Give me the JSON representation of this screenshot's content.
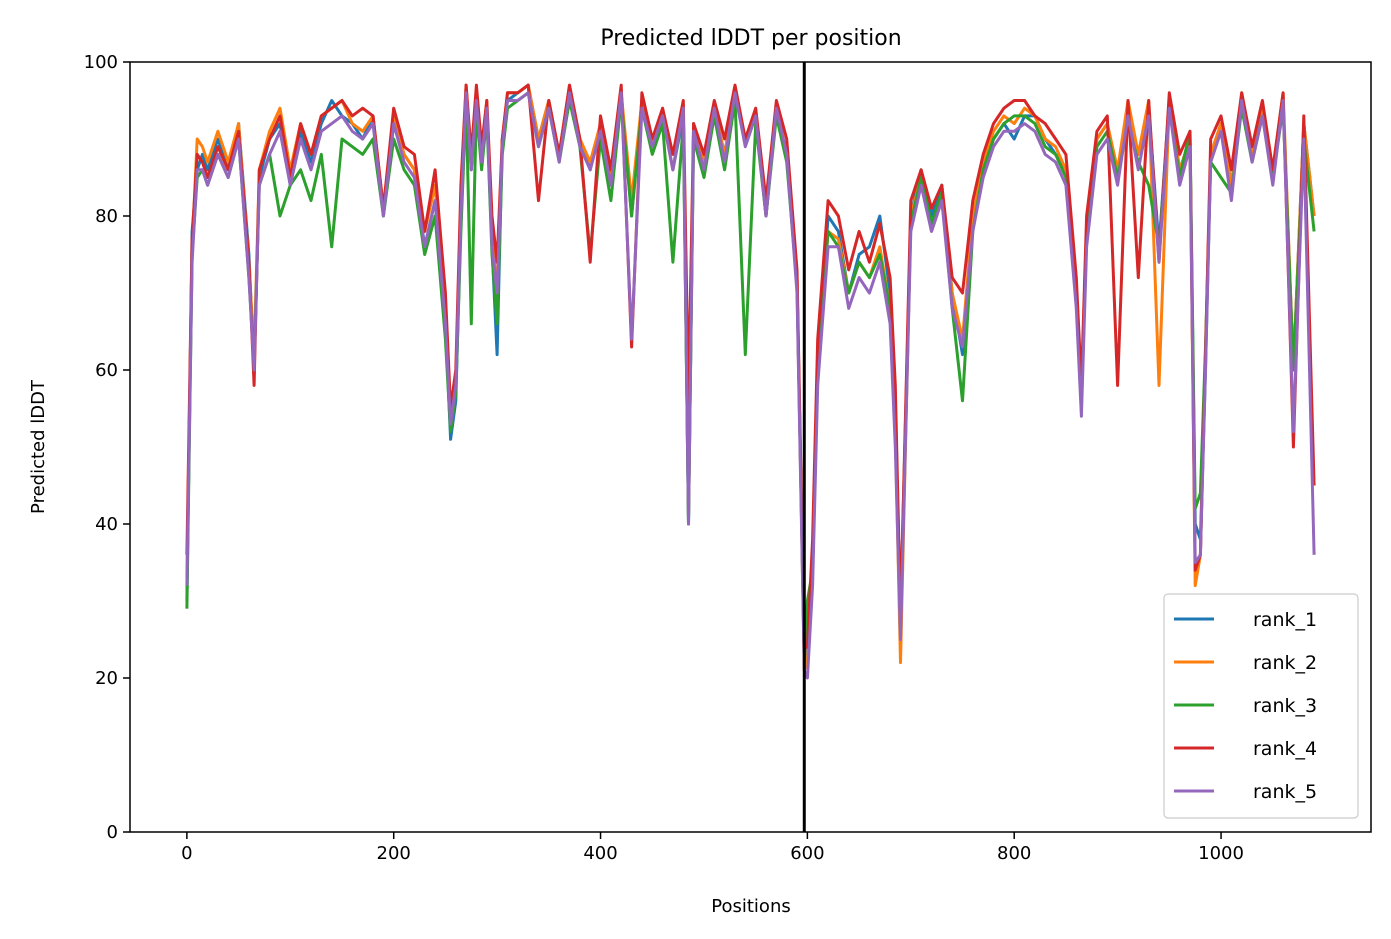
{
  "chart_data": {
    "type": "line",
    "title": "Predicted lDDT per position",
    "xlabel": "Positions",
    "ylabel": "Predicted lDDT",
    "xlim": [
      -55,
      1145
    ],
    "ylim": [
      0,
      100
    ],
    "xticks": [
      0,
      200,
      400,
      600,
      800,
      1000
    ],
    "yticks": [
      0,
      20,
      40,
      60,
      80,
      100
    ],
    "grid": false,
    "legend_position": "lower-right",
    "vline": 597,
    "series": [
      {
        "name": "rank_1",
        "color": "#1f77b4",
        "x": [
          0,
          5,
          10,
          15,
          20,
          30,
          40,
          50,
          60,
          65,
          70,
          80,
          90,
          100,
          110,
          120,
          130,
          140,
          150,
          160,
          170,
          180,
          190,
          200,
          210,
          220,
          230,
          240,
          250,
          255,
          260,
          265,
          270,
          275,
          280,
          285,
          290,
          295,
          300,
          305,
          310,
          320,
          330,
          340,
          350,
          360,
          370,
          380,
          390,
          400,
          410,
          420,
          430,
          440,
          450,
          460,
          470,
          480,
          485,
          490,
          500,
          510,
          520,
          530,
          540,
          550,
          560,
          570,
          580,
          590,
          597,
          600,
          605,
          610,
          620,
          630,
          640,
          650,
          660,
          670,
          680,
          685,
          690,
          700,
          710,
          720,
          730,
          740,
          750,
          760,
          770,
          780,
          790,
          800,
          810,
          820,
          830,
          840,
          850,
          860,
          865,
          870,
          880,
          890,
          900,
          910,
          920,
          930,
          940,
          950,
          960,
          970,
          975,
          980,
          985,
          990,
          1000,
          1010,
          1020,
          1030,
          1040,
          1050,
          1060,
          1070,
          1080,
          1090
        ],
        "y": [
          30,
          78,
          86,
          88,
          86,
          90,
          86,
          92,
          75,
          60,
          85,
          90,
          92,
          84,
          91,
          87,
          92,
          95,
          93,
          92,
          90,
          93,
          80,
          92,
          88,
          86,
          76,
          82,
          66,
          51,
          56,
          80,
          96,
          86,
          96,
          88,
          94,
          76,
          62,
          90,
          95,
          96,
          97,
          90,
          95,
          88,
          96,
          90,
          86,
          92,
          84,
          96,
          80,
          95,
          90,
          93,
          86,
          93,
          40,
          92,
          86,
          94,
          88,
          96,
          90,
          93,
          80,
          94,
          88,
          72,
          22,
          24,
          34,
          60,
          80,
          78,
          70,
          75,
          76,
          80,
          70,
          55,
          28,
          80,
          86,
          80,
          84,
          70,
          62,
          80,
          86,
          90,
          92,
          90,
          93,
          93,
          90,
          88,
          86,
          70,
          56,
          78,
          90,
          92,
          85,
          94,
          88,
          94,
          76,
          95,
          86,
          90,
          40,
          38,
          60,
          88,
          92,
          84,
          95,
          88,
          94,
          86,
          95,
          60,
          92,
          80
        ]
      },
      {
        "name": "rank_2",
        "color": "#ff7f0e",
        "x": [
          0,
          5,
          10,
          15,
          20,
          30,
          40,
          50,
          60,
          65,
          70,
          80,
          90,
          100,
          110,
          120,
          130,
          140,
          150,
          160,
          170,
          180,
          190,
          200,
          210,
          220,
          230,
          240,
          250,
          255,
          260,
          265,
          270,
          275,
          280,
          285,
          290,
          295,
          300,
          305,
          310,
          320,
          330,
          340,
          350,
          360,
          370,
          380,
          390,
          400,
          410,
          420,
          430,
          440,
          450,
          460,
          470,
          480,
          485,
          490,
          500,
          510,
          520,
          530,
          540,
          550,
          560,
          570,
          580,
          590,
          597,
          600,
          605,
          610,
          620,
          630,
          640,
          650,
          660,
          670,
          680,
          685,
          690,
          700,
          710,
          720,
          730,
          740,
          750,
          760,
          770,
          780,
          790,
          800,
          810,
          820,
          830,
          840,
          850,
          860,
          865,
          870,
          880,
          890,
          900,
          910,
          920,
          930,
          940,
          950,
          960,
          970,
          975,
          980,
          985,
          990,
          1000,
          1010,
          1020,
          1030,
          1040,
          1050,
          1060,
          1070,
          1080,
          1090
        ],
        "y": [
          33,
          76,
          90,
          89,
          87,
          91,
          87,
          92,
          74,
          62,
          86,
          91,
          94,
          86,
          92,
          88,
          93,
          94,
          95,
          92,
          91,
          93,
          81,
          93,
          88,
          86,
          78,
          84,
          65,
          53,
          58,
          82,
          97,
          87,
          96,
          88,
          95,
          78,
          70,
          90,
          96,
          96,
          97,
          90,
          95,
          88,
          97,
          90,
          87,
          92,
          85,
          96,
          82,
          95,
          90,
          93,
          86,
          94,
          41,
          92,
          87,
          94,
          88,
          96,
          90,
          93,
          80,
          94,
          88,
          72,
          21,
          22,
          35,
          62,
          78,
          77,
          70,
          74,
          72,
          76,
          68,
          52,
          22,
          80,
          85,
          78,
          82,
          70,
          64,
          80,
          87,
          91,
          93,
          92,
          94,
          93,
          90,
          89,
          86,
          70,
          55,
          78,
          90,
          92,
          86,
          95,
          88,
          95,
          58,
          95,
          86,
          90,
          32,
          36,
          62,
          88,
          92,
          84,
          96,
          88,
          94,
          86,
          96,
          60,
          92,
          80
        ]
      },
      {
        "name": "rank_3",
        "color": "#2ca02c",
        "x": [
          0,
          5,
          10,
          15,
          20,
          30,
          40,
          50,
          60,
          65,
          70,
          80,
          90,
          100,
          110,
          120,
          130,
          140,
          150,
          160,
          170,
          180,
          190,
          200,
          210,
          220,
          230,
          240,
          250,
          255,
          260,
          265,
          270,
          275,
          280,
          285,
          290,
          295,
          300,
          305,
          310,
          320,
          330,
          340,
          350,
          360,
          370,
          380,
          390,
          400,
          410,
          420,
          430,
          440,
          450,
          460,
          470,
          480,
          485,
          490,
          500,
          510,
          520,
          530,
          540,
          550,
          560,
          570,
          580,
          590,
          597,
          600,
          605,
          610,
          620,
          630,
          640,
          650,
          660,
          670,
          680,
          685,
          690,
          700,
          710,
          720,
          730,
          740,
          750,
          760,
          770,
          780,
          790,
          800,
          810,
          820,
          830,
          840,
          850,
          860,
          865,
          870,
          880,
          890,
          900,
          910,
          920,
          930,
          940,
          950,
          960,
          970,
          975,
          980,
          985,
          990,
          1000,
          1010,
          1020,
          1030,
          1040,
          1050,
          1060,
          1070,
          1080,
          1090
        ],
        "y": [
          29,
          75,
          85,
          86,
          84,
          88,
          85,
          90,
          72,
          61,
          84,
          88,
          80,
          84,
          86,
          82,
          88,
          76,
          90,
          89,
          88,
          90,
          80,
          90,
          86,
          84,
          75,
          80,
          64,
          52,
          57,
          78,
          95,
          66,
          94,
          86,
          93,
          75,
          66,
          88,
          94,
          95,
          96,
          89,
          94,
          87,
          95,
          89,
          75,
          90,
          82,
          95,
          80,
          94,
          88,
          92,
          74,
          92,
          40,
          90,
          85,
          93,
          86,
          95,
          62,
          92,
          80,
          93,
          87,
          71,
          23,
          30,
          34,
          60,
          78,
          76,
          70,
          74,
          72,
          75,
          68,
          54,
          26,
          79,
          85,
          79,
          83,
          68,
          56,
          78,
          86,
          90,
          92,
          93,
          93,
          92,
          89,
          88,
          85,
          69,
          56,
          77,
          89,
          91,
          85,
          92,
          87,
          84,
          76,
          94,
          85,
          91,
          42,
          44,
          63,
          87,
          85,
          83,
          94,
          87,
          93,
          85,
          94,
          60,
          90,
          78
        ]
      },
      {
        "name": "rank_4",
        "color": "#d62728",
        "x": [
          0,
          5,
          10,
          15,
          20,
          30,
          40,
          50,
          60,
          65,
          70,
          80,
          90,
          100,
          110,
          120,
          130,
          140,
          150,
          160,
          170,
          180,
          190,
          200,
          210,
          220,
          230,
          240,
          250,
          255,
          260,
          265,
          270,
          275,
          280,
          285,
          290,
          295,
          300,
          305,
          310,
          320,
          330,
          340,
          350,
          360,
          370,
          380,
          390,
          400,
          410,
          420,
          430,
          440,
          450,
          460,
          470,
          480,
          485,
          490,
          500,
          510,
          520,
          530,
          540,
          550,
          560,
          570,
          580,
          590,
          597,
          600,
          605,
          610,
          620,
          630,
          640,
          650,
          660,
          670,
          680,
          685,
          690,
          700,
          710,
          720,
          730,
          740,
          750,
          760,
          770,
          780,
          790,
          800,
          810,
          820,
          830,
          840,
          850,
          860,
          865,
          870,
          880,
          890,
          900,
          910,
          920,
          930,
          940,
          950,
          960,
          970,
          975,
          980,
          985,
          990,
          1000,
          1010,
          1020,
          1030,
          1040,
          1050,
          1060,
          1070,
          1080,
          1090
        ],
        "y": [
          36,
          77,
          88,
          87,
          85,
          89,
          86,
          91,
          74,
          58,
          86,
          90,
          93,
          85,
          92,
          88,
          93,
          94,
          95,
          93,
          94,
          93,
          81,
          94,
          89,
          88,
          78,
          86,
          70,
          55,
          60,
          84,
          97,
          88,
          97,
          89,
          95,
          80,
          74,
          90,
          96,
          96,
          97,
          82,
          95,
          88,
          97,
          90,
          74,
          93,
          86,
          97,
          63,
          96,
          90,
          94,
          88,
          95,
          56,
          92,
          88,
          95,
          90,
          97,
          90,
          94,
          82,
          95,
          90,
          73,
          24,
          24,
          38,
          64,
          82,
          80,
          73,
          78,
          74,
          79,
          72,
          58,
          28,
          82,
          86,
          81,
          84,
          72,
          70,
          82,
          88,
          92,
          94,
          95,
          95,
          93,
          92,
          90,
          88,
          72,
          58,
          80,
          91,
          93,
          58,
          95,
          72,
          95,
          74,
          96,
          88,
          91,
          34,
          36,
          62,
          90,
          93,
          86,
          96,
          89,
          95,
          86,
          96,
          50,
          93,
          45
        ]
      },
      {
        "name": "rank_5",
        "color": "#9467bd",
        "x": [
          0,
          5,
          10,
          15,
          20,
          30,
          40,
          50,
          60,
          65,
          70,
          80,
          90,
          100,
          110,
          120,
          130,
          140,
          150,
          160,
          170,
          180,
          190,
          200,
          210,
          220,
          230,
          240,
          250,
          255,
          260,
          265,
          270,
          275,
          280,
          285,
          290,
          295,
          300,
          305,
          310,
          320,
          330,
          340,
          350,
          360,
          370,
          380,
          390,
          400,
          410,
          420,
          430,
          440,
          450,
          460,
          470,
          480,
          485,
          490,
          500,
          510,
          520,
          530,
          540,
          550,
          560,
          570,
          580,
          590,
          597,
          600,
          605,
          610,
          620,
          630,
          640,
          650,
          660,
          670,
          680,
          685,
          690,
          700,
          710,
          720,
          730,
          740,
          750,
          760,
          770,
          780,
          790,
          800,
          810,
          820,
          830,
          840,
          850,
          860,
          865,
          870,
          880,
          890,
          900,
          910,
          920,
          930,
          940,
          950,
          960,
          970,
          975,
          980,
          985,
          990,
          1000,
          1010,
          1020,
          1030,
          1040,
          1050,
          1060,
          1070,
          1080,
          1090
        ],
        "y": [
          32,
          74,
          86,
          86,
          84,
          88,
          85,
          90,
          72,
          60,
          84,
          88,
          91,
          84,
          90,
          86,
          91,
          92,
          93,
          91,
          90,
          92,
          80,
          92,
          87,
          85,
          76,
          82,
          66,
          53,
          58,
          80,
          96,
          86,
          95,
          87,
          94,
          76,
          70,
          89,
          95,
          95,
          96,
          89,
          94,
          87,
          96,
          89,
          86,
          91,
          84,
          96,
          64,
          94,
          89,
          93,
          86,
          94,
          40,
          91,
          86,
          94,
          87,
          96,
          89,
          93,
          80,
          94,
          88,
          70,
          21,
          20,
          32,
          58,
          76,
          76,
          68,
          72,
          70,
          74,
          66,
          50,
          25,
          78,
          84,
          78,
          82,
          68,
          63,
          78,
          85,
          89,
          91,
          91,
          92,
          91,
          88,
          87,
          84,
          68,
          54,
          76,
          88,
          90,
          84,
          93,
          86,
          93,
          74,
          94,
          84,
          89,
          35,
          36,
          60,
          87,
          91,
          82,
          95,
          87,
          93,
          84,
          95,
          52,
          90,
          36
        ]
      }
    ]
  }
}
